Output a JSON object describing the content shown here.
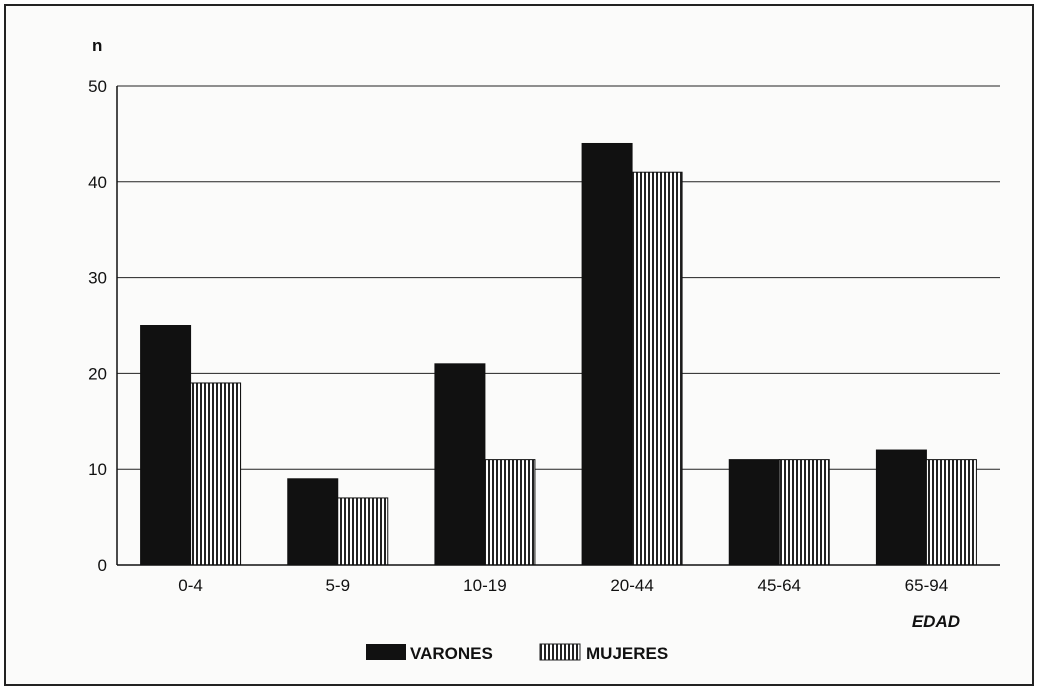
{
  "chart_data": {
    "type": "bar",
    "ylabel": "n",
    "xlabel": "EDAD",
    "ylim": [
      0,
      50
    ],
    "yticks": [
      0,
      10,
      20,
      30,
      40,
      50
    ],
    "categories": [
      "0-4",
      "5-9",
      "10-19",
      "20-44",
      "45-64",
      "65-94"
    ],
    "series": [
      {
        "name": "VARONES",
        "values": [
          25,
          9,
          21,
          44,
          11,
          12
        ],
        "pattern": "solid",
        "color": "#111111"
      },
      {
        "name": "MUJERES",
        "values": [
          19,
          7,
          11,
          41,
          11,
          11
        ],
        "pattern": "vertical-stripes",
        "color": "#111111"
      }
    ],
    "grid": true,
    "legend_position": "bottom"
  }
}
